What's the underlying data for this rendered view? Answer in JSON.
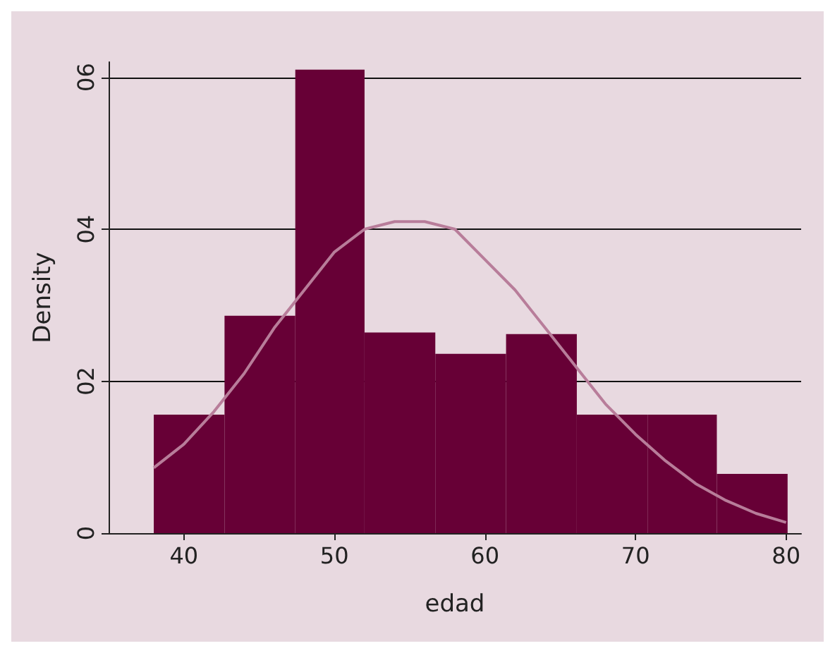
{
  "chart_data": {
    "type": "histogram",
    "xlabel": "edad",
    "ylabel": "Density",
    "bins": [
      38,
      42.7,
      47.4,
      52.0,
      56.7,
      61.4,
      66.1,
      70.8,
      75.4,
      80.1
    ],
    "values": [
      1.56,
      2.86,
      6.1,
      2.64,
      2.36,
      2.62,
      1.56,
      1.56,
      0.78
    ],
    "color": "#670036",
    "series": [
      {
        "type": "line",
        "color": "#b87d9a",
        "marker": "none",
        "line_style": "solid",
        "x": [
          38,
          40,
          42,
          44,
          46,
          48,
          50,
          52,
          54,
          56,
          58,
          60,
          62,
          64,
          66,
          68,
          70,
          72,
          74,
          76,
          78,
          80
        ],
        "values": [
          0.86,
          1.17,
          1.6,
          2.1,
          2.7,
          3.2,
          3.7,
          4.0,
          4.1,
          4.1,
          4.0,
          3.6,
          3.2,
          2.7,
          2.2,
          1.7,
          1.3,
          0.95,
          0.65,
          0.43,
          0.26,
          0.14
        ]
      }
    ],
    "xlim": [
      35,
      81
    ],
    "xticks": [
      40,
      50,
      60,
      70,
      80
    ],
    "ylim": [
      0,
      6.2
    ],
    "yticks": [
      0,
      {
        "value": 2,
        "label": "02"
      },
      {
        "value": 4,
        "label": "04"
      },
      {
        "value": 6,
        "label": "06"
      }
    ],
    "grid": "y"
  }
}
